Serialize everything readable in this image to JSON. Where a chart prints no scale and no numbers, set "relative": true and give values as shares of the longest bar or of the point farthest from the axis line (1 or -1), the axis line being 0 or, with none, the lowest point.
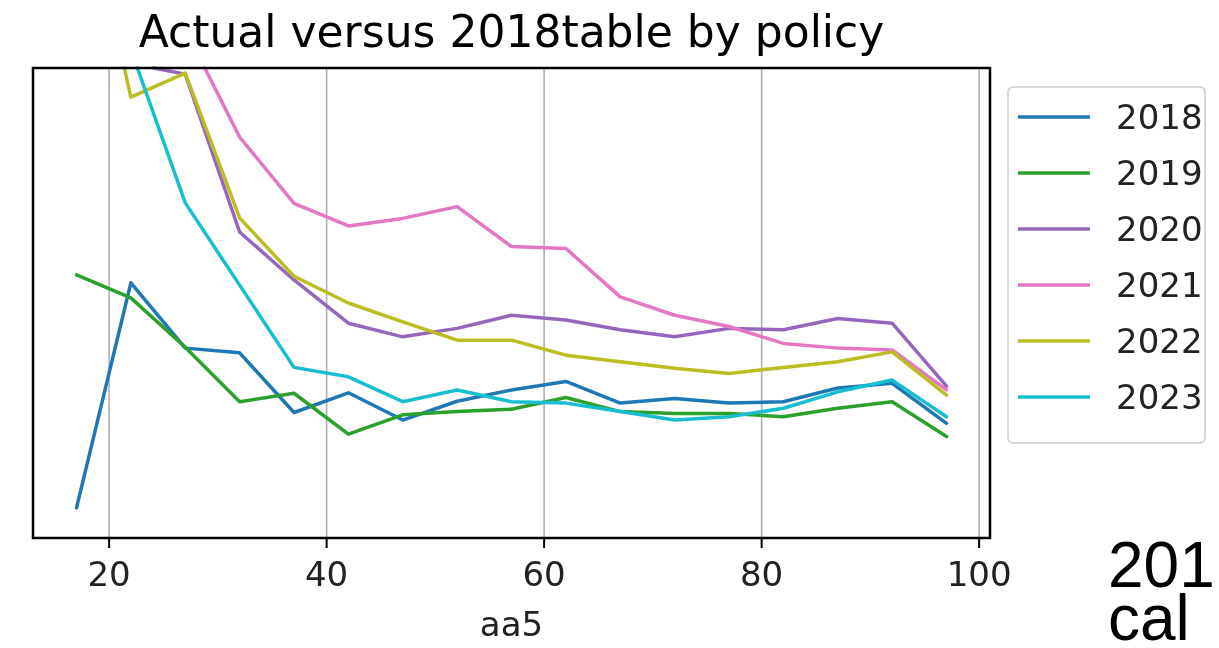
{
  "chart_data": {
    "type": "line",
    "title": "Actual versus 2018table by policy",
    "xlabel": "aa5",
    "relative": true,
    "xlim": [
      13,
      101
    ],
    "xticks": [
      20,
      40,
      60,
      80,
      100
    ],
    "grid": "x",
    "legend": "right",
    "series": [
      {
        "name": "2018",
        "color": "#1f77b4",
        "x": [
          17,
          22,
          27,
          32,
          37,
          42,
          47,
          52,
          57,
          62,
          67,
          72,
          77,
          82,
          87,
          92,
          97
        ],
        "values": [
          0.064,
          0.543,
          0.404,
          0.394,
          0.267,
          0.309,
          0.251,
          0.291,
          0.315,
          0.333,
          0.287,
          0.297,
          0.287,
          0.29,
          0.319,
          0.329,
          0.244
        ]
      },
      {
        "name": "2019",
        "color": "#2ca02c",
        "x": [
          17,
          22,
          27,
          32,
          37,
          42,
          47,
          52,
          57,
          62,
          67,
          72,
          77,
          82,
          87,
          92,
          97
        ],
        "values": [
          0.56,
          0.511,
          0.406,
          0.29,
          0.308,
          0.221,
          0.262,
          0.269,
          0.274,
          0.299,
          0.269,
          0.265,
          0.265,
          0.258,
          0.276,
          0.29,
          0.216
        ]
      },
      {
        "name": "2020",
        "color": "#9467bd",
        "x": [
          24.1,
          27,
          32,
          37,
          42,
          47,
          52,
          57,
          62,
          67,
          72,
          77,
          82,
          87,
          92,
          97
        ],
        "values": [
          1,
          0.987,
          0.651,
          0.549,
          0.457,
          0.428,
          0.446,
          0.474,
          0.464,
          0.443,
          0.428,
          0.446,
          0.443,
          0.467,
          0.457,
          0.323
        ]
      },
      {
        "name": "2021",
        "color": "#e377c2",
        "x": [
          28.8,
          32,
          37,
          42,
          47,
          52,
          57,
          62,
          67,
          72,
          77,
          82,
          87,
          92,
          97
        ],
        "values": [
          1,
          0.853,
          0.712,
          0.664,
          0.68,
          0.705,
          0.62,
          0.616,
          0.513,
          0.474,
          0.45,
          0.414,
          0.404,
          0.4,
          0.315
        ]
      },
      {
        "name": "2022",
        "color": "#bcbd22",
        "x": [
          21.4,
          22,
          27,
          32,
          37,
          42,
          47,
          52,
          57,
          62,
          67,
          72,
          77,
          82,
          87,
          92,
          97
        ],
        "values": [
          1,
          0.938,
          0.989,
          0.681,
          0.557,
          0.5,
          0.46,
          0.421,
          0.421,
          0.389,
          0.375,
          0.361,
          0.35,
          0.363,
          0.375,
          0.396,
          0.304
        ]
      },
      {
        "name": "2023",
        "color": "#17becf",
        "x": [
          22.6,
          27,
          32,
          37,
          42,
          47,
          52,
          57,
          62,
          67,
          72,
          77,
          82,
          87,
          92,
          97
        ],
        "values": [
          1,
          0.713,
          0.538,
          0.363,
          0.343,
          0.29,
          0.315,
          0.29,
          0.287,
          0.269,
          0.251,
          0.258,
          0.276,
          0.311,
          0.336,
          0.258
        ]
      }
    ],
    "annotations": [
      "201",
      "cal"
    ]
  }
}
